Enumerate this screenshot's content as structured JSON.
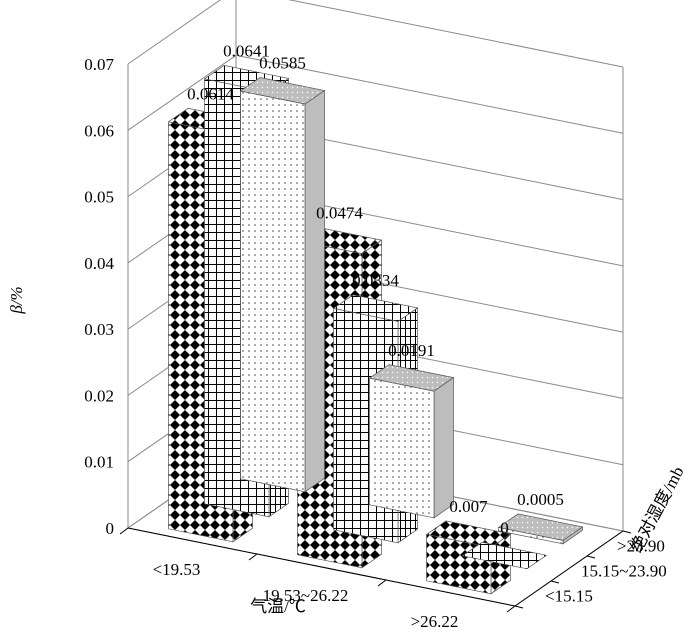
{
  "chart_data": {
    "type": "bar",
    "subtype": "3d-grouped",
    "ylabel": "β/%",
    "xlabel": "气温/℃",
    "zlabel": "绝对湿度/mb",
    "ylim": [
      0,
      0.07
    ],
    "yticks": [
      "0",
      "0.01",
      "0.02",
      "0.03",
      "0.04",
      "0.05",
      "0.06",
      "0.07"
    ],
    "grid": true,
    "categories": [
      "<19.53",
      "19.53~26.22",
      ">26.22"
    ],
    "series": [
      {
        "name": "<15.15",
        "pattern": "diamond-checker",
        "values": [
          0.0614,
          0.0474,
          0.007
        ]
      },
      {
        "name": "15.15~23.90",
        "pattern": "grid",
        "values": [
          0.0641,
          0.0334,
          0
        ]
      },
      {
        "name": ">23.90",
        "pattern": "dots",
        "values": [
          0.0585,
          0.0191,
          0.0005
        ]
      }
    ],
    "data_labels": [
      [
        "0.0614",
        "0.0474",
        "0.007"
      ],
      [
        "0.0641",
        "0.0334",
        "0"
      ],
      [
        "0.0585",
        "0.0191",
        "0.0005"
      ]
    ]
  }
}
